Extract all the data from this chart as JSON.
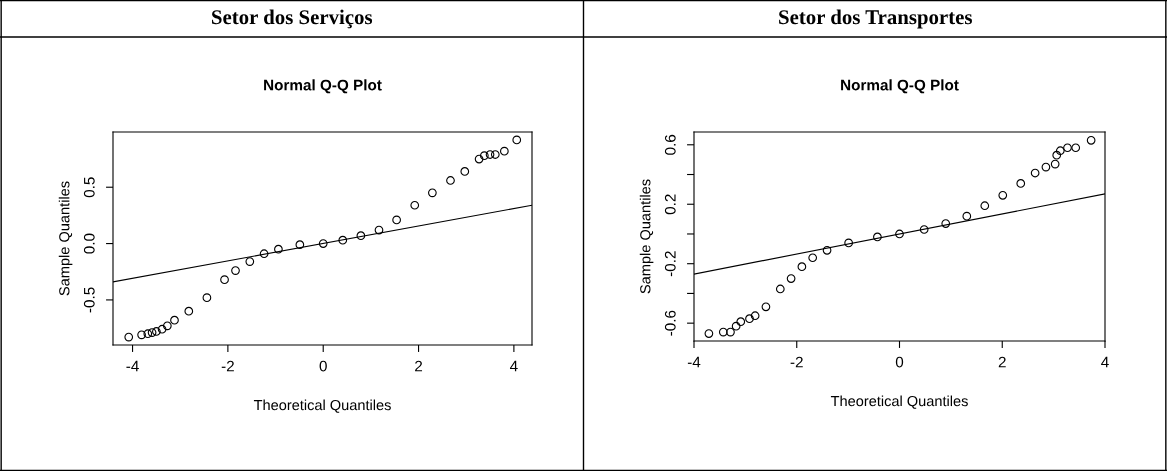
{
  "chart_data": [
    {
      "type": "scatter",
      "title": "Setor dos Serviços",
      "subtitle": "Normal Q-Q Plot",
      "xlabel": "Theoretical Quantiles",
      "ylabel": "Sample Quantiles",
      "grid": false,
      "xlim": [
        -4.41,
        4.38
      ],
      "ylim": [
        -0.9,
        0.99
      ],
      "xticks": [
        -4,
        -2,
        0,
        2,
        4
      ],
      "yticks": [
        {
          "value": -0.5,
          "label": "-0.5"
        },
        {
          "value": 0,
          "label": "0.0"
        },
        {
          "value": 0.5,
          "label": "0.5"
        }
      ],
      "series": [
        {
          "marker": "circle",
          "color": "#000000",
          "x": [
            -4.08,
            -3.81,
            -3.68,
            -3.59,
            -3.5,
            -3.38,
            -3.27,
            -3.12,
            -2.82,
            -2.44,
            -2.07,
            -1.84,
            -1.54,
            -1.24,
            -0.94,
            -0.49,
            0,
            0.41,
            0.79,
            1.17,
            1.54,
            1.92,
            2.29,
            2.67,
            2.97,
            3.27,
            3.38,
            3.5,
            3.61,
            3.8,
            4.06
          ],
          "values": [
            -0.83,
            -0.81,
            -0.8,
            -0.79,
            -0.78,
            -0.76,
            -0.73,
            -0.68,
            -0.6,
            -0.48,
            -0.32,
            -0.24,
            -0.16,
            -0.09,
            -0.05,
            -0.01,
            0,
            0.03,
            0.07,
            0.12,
            0.21,
            0.34,
            0.45,
            0.56,
            0.64,
            0.75,
            0.78,
            0.79,
            0.79,
            0.82,
            0.92
          ]
        },
        {
          "type": "line",
          "marker": "none",
          "color": "#000000",
          "x": [
            -4.41,
            4.38
          ],
          "values": [
            -0.34,
            0.34
          ]
        }
      ]
    },
    {
      "type": "scatter",
      "title": "Setor dos Transportes",
      "subtitle": "Normal Q-Q Plot",
      "xlabel": "Theoretical Quantiles",
      "ylabel": "Sample Quantiles",
      "grid": false,
      "xlim": [
        -4.0,
        4.0
      ],
      "ylim": [
        -0.72,
        0.686
      ],
      "xticks": [
        -4,
        -2,
        0,
        2,
        4
      ],
      "yticks": [
        {
          "value": -0.6,
          "label": "-0.6"
        },
        {
          "value": -0.4,
          "label": null
        },
        {
          "value": -0.2,
          "label": "-0.2"
        },
        {
          "value": 0,
          "label": null
        },
        {
          "value": 0.2,
          "label": "0.2"
        },
        {
          "value": 0.4,
          "label": null
        },
        {
          "value": 0.6,
          "label": "0.6"
        }
      ],
      "series": [
        {
          "marker": "circle",
          "color": "#000000",
          "x": [
            -3.71,
            -3.43,
            -3.29,
            -3.18,
            -3.09,
            -2.92,
            -2.81,
            -2.6,
            -2.32,
            -2.11,
            -1.9,
            -1.69,
            -1.41,
            -0.99,
            -0.43,
            0,
            0.48,
            0.9,
            1.31,
            1.66,
            2.01,
            2.36,
            2.64,
            2.85,
            3.03,
            3.06,
            3.13,
            3.27,
            3.43,
            3.73
          ],
          "values": [
            -0.67,
            -0.66,
            -0.66,
            -0.62,
            -0.59,
            -0.57,
            -0.55,
            -0.49,
            -0.37,
            -0.3,
            -0.22,
            -0.16,
            -0.11,
            -0.06,
            -0.02,
            0,
            0.03,
            0.07,
            0.12,
            0.19,
            0.26,
            0.34,
            0.41,
            0.45,
            0.47,
            0.53,
            0.56,
            0.58,
            0.58,
            0.63
          ]
        },
        {
          "type": "line",
          "marker": "none",
          "color": "#000000",
          "x": [
            -4.0,
            4.0
          ],
          "values": [
            -0.27,
            0.27
          ]
        }
      ]
    }
  ]
}
